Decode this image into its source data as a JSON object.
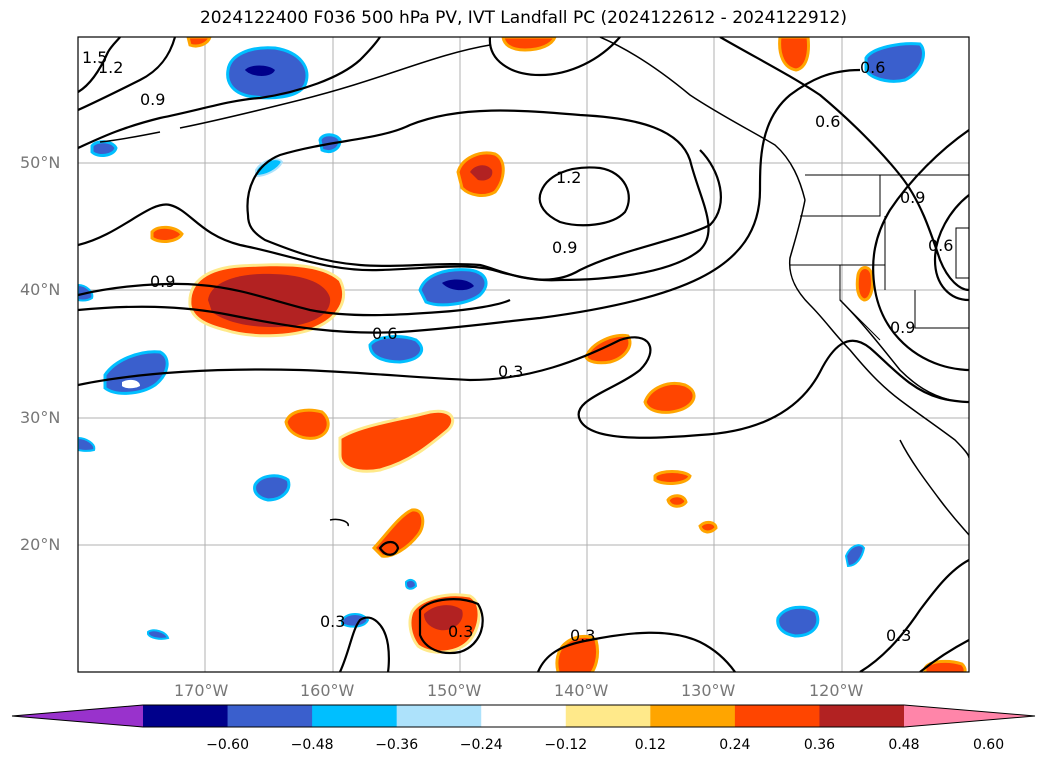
{
  "title": "2024122400 F036 500 hPa PV, IVT Landfall PC (2024122612 - 2024122912)",
  "lat_ticks": [
    "50°N",
    "40°N",
    "30°N",
    "20°N"
  ],
  "lon_ticks": [
    "170°W",
    "160°W",
    "150°W",
    "140°W",
    "130°W",
    "120°W"
  ],
  "colorbar": {
    "tick_labels": [
      "−0.60",
      "−0.48",
      "−0.36",
      "−0.24",
      "−0.12",
      "0.12",
      "0.24",
      "0.36",
      "0.48",
      "0.60"
    ],
    "colors": [
      "#9932cc",
      "#00008b",
      "#3a5fcd",
      "#00bfff",
      "#ade2fb",
      "#ffffff",
      "#ffe98a",
      "#ffa500",
      "#ff4500",
      "#b22222",
      "#ff85a9"
    ]
  },
  "contour_labels": [
    "1.5",
    "1.2",
    "0.9",
    "1.2",
    "0.9",
    "0.9",
    "0.6",
    "0.3",
    "0.6",
    "0.9",
    "0.6",
    "0.6",
    "0.9",
    "0.3",
    "0.3",
    "0.3",
    "0.3"
  ]
}
